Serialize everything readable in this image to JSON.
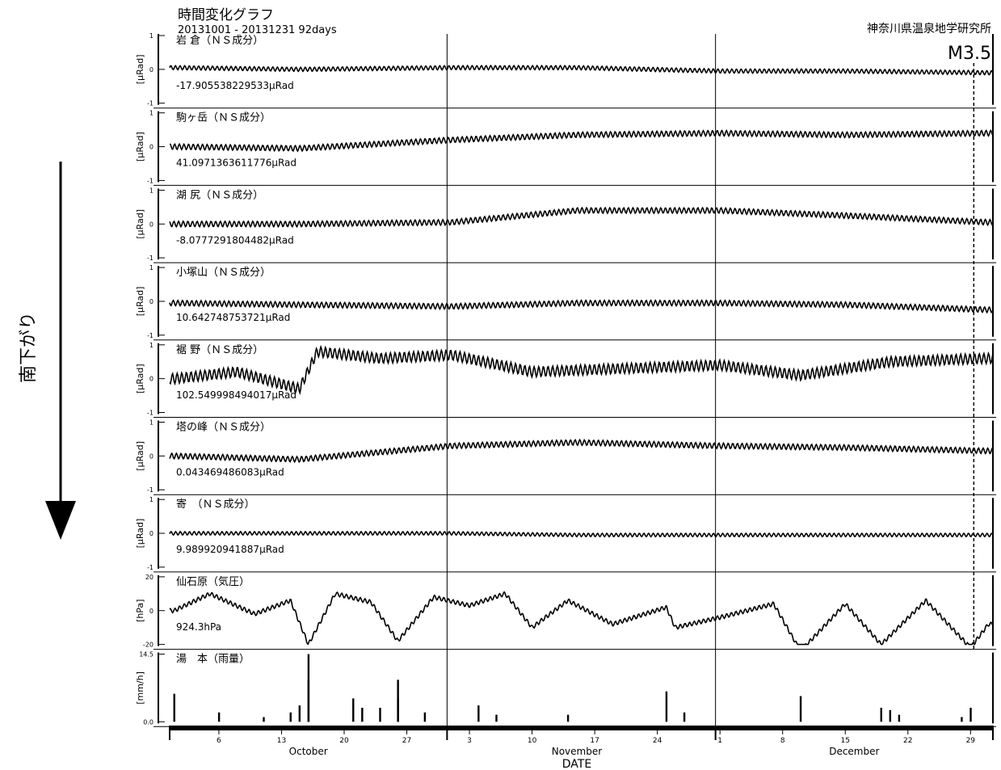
{
  "header": {
    "title": "時間変化グラフ",
    "period": "20131001 - 20131231 92days",
    "institute": "神奈川県温泉地学研究所",
    "event_label": "M3.5"
  },
  "side_label": "南下がり",
  "chart_data": {
    "type": "line",
    "x_axis": {
      "label": "DATE",
      "start": "2013-10-01",
      "end": "2013-12-31",
      "days": 92,
      "ticks": [
        {
          "label": "6",
          "date": "2013-10-06"
        },
        {
          "label": "13",
          "date": "2013-10-13"
        },
        {
          "label": "20",
          "date": "2013-10-20"
        },
        {
          "label": "27",
          "date": "2013-10-27"
        },
        {
          "label": "3",
          "date": "2013-11-03"
        },
        {
          "label": "10",
          "date": "2013-11-10"
        },
        {
          "label": "17",
          "date": "2013-11-17"
        },
        {
          "label": "24",
          "date": "2013-11-24"
        },
        {
          "label": "1",
          "date": "2013-12-01"
        },
        {
          "label": "8",
          "date": "2013-12-08"
        },
        {
          "label": "15",
          "date": "2013-12-15"
        },
        {
          "label": "22",
          "date": "2013-12-22"
        },
        {
          "label": "29",
          "date": "2013-12-29"
        }
      ],
      "months": [
        {
          "label": "October",
          "date": "2013-10-16"
        },
        {
          "label": "November",
          "date": "2013-11-15"
        },
        {
          "label": "December",
          "date": "2013-12-16"
        }
      ],
      "month_boundaries": [
        "2013-11-01",
        "2013-12-01"
      ],
      "event_marker_date": "2013-12-29"
    },
    "panels": [
      {
        "name": "岩 倉（ＮＳ成分）",
        "ylabel": "[μRad]",
        "yticks": [
          "1",
          "0",
          "-1"
        ],
        "ylim": [
          -1,
          1
        ],
        "offset_label": "-17.905538229533μRad",
        "x": [
          "2013-10-01",
          "2013-10-15",
          "2013-11-01",
          "2013-11-15",
          "2013-12-01",
          "2013-12-15",
          "2013-12-31"
        ],
        "y": [
          0.05,
          0.0,
          0.05,
          0.05,
          -0.05,
          -0.05,
          -0.1
        ],
        "tidal_amp": 0.06
      },
      {
        "name": "駒ヶ岳（ＮＳ成分）",
        "ylabel": "[μRad]",
        "yticks": [
          "1",
          "0",
          "-1"
        ],
        "ylim": [
          -1,
          1
        ],
        "offset_label": "41.0971363611776μRad",
        "x": [
          "2013-10-01",
          "2013-10-15",
          "2013-11-01",
          "2013-11-15",
          "2013-12-01",
          "2013-12-15",
          "2013-12-31"
        ],
        "y": [
          0.0,
          -0.05,
          0.2,
          0.35,
          0.4,
          0.35,
          0.4
        ],
        "tidal_amp": 0.08
      },
      {
        "name": "湖 尻（ＮＳ成分）",
        "ylabel": "[μRad]",
        "yticks": [
          "1",
          "0",
          "-1"
        ],
        "ylim": [
          -1,
          1
        ],
        "offset_label": "-8.0777291804482μRad",
        "x": [
          "2013-10-01",
          "2013-10-15",
          "2013-11-01",
          "2013-11-15",
          "2013-12-01",
          "2013-12-15",
          "2013-12-31"
        ],
        "y": [
          0.0,
          0.0,
          0.05,
          0.4,
          0.4,
          0.25,
          0.05
        ],
        "tidal_amp": 0.08
      },
      {
        "name": "小塚山（ＮＳ成分）",
        "ylabel": "[μRad]",
        "yticks": [
          "1",
          "0",
          "-1"
        ],
        "ylim": [
          -1,
          1
        ],
        "offset_label": "10.642748753721μRad",
        "x": [
          "2013-10-01",
          "2013-10-15",
          "2013-11-01",
          "2013-11-15",
          "2013-12-01",
          "2013-12-15",
          "2013-12-31"
        ],
        "y": [
          -0.05,
          -0.1,
          -0.15,
          -0.05,
          -0.05,
          -0.1,
          -0.25
        ],
        "tidal_amp": 0.08
      },
      {
        "name": "裾 野（ＮＳ成分）",
        "ylabel": "[μRad]",
        "yticks": [
          "1",
          "0",
          "-1"
        ],
        "ylim": [
          -1,
          1
        ],
        "offset_label": "102.549998494017μRad",
        "x": [
          "2013-10-01",
          "2013-10-08",
          "2013-10-15",
          "2013-10-17",
          "2013-10-24",
          "2013-11-01",
          "2013-11-10",
          "2013-11-20",
          "2013-12-01",
          "2013-12-10",
          "2013-12-20",
          "2013-12-31"
        ],
        "y": [
          0.0,
          0.2,
          -0.3,
          0.8,
          0.6,
          0.7,
          0.2,
          0.3,
          0.4,
          0.1,
          0.5,
          0.6
        ],
        "tidal_amp": 0.15
      },
      {
        "name": "塔の峰（ＮＳ成分）",
        "ylabel": "[μRad]",
        "yticks": [
          "1",
          "0",
          "-1"
        ],
        "ylim": [
          -1,
          1
        ],
        "offset_label": "0.043469486083μRad",
        "x": [
          "2013-10-01",
          "2013-10-15",
          "2013-11-01",
          "2013-11-15",
          "2013-12-01",
          "2013-12-15",
          "2013-12-31"
        ],
        "y": [
          0.0,
          -0.1,
          0.3,
          0.4,
          0.3,
          0.25,
          0.15
        ],
        "tidal_amp": 0.08
      },
      {
        "name": "寄　（ＮＳ成分）",
        "ylabel": "[μRad]",
        "yticks": [
          "1",
          "0",
          "-1"
        ],
        "ylim": [
          -1,
          1
        ],
        "offset_label": "9.989920941887μRad",
        "x": [
          "2013-10-01",
          "2013-10-15",
          "2013-11-01",
          "2013-11-15",
          "2013-12-01",
          "2013-12-15",
          "2013-12-31"
        ],
        "y": [
          0.0,
          0.0,
          0.0,
          -0.05,
          -0.05,
          -0.05,
          -0.05
        ],
        "tidal_amp": 0.05
      },
      {
        "name": "仙石原（気圧）",
        "ylabel": "[hPa]",
        "yticks": [
          "20",
          "0",
          "-20"
        ],
        "ylim": [
          -20,
          20
        ],
        "offset_label": "924.3hPa",
        "x": [
          "2013-10-01",
          "2013-10-05",
          "2013-10-10",
          "2013-10-14",
          "2013-10-16",
          "2013-10-19",
          "2013-10-23",
          "2013-10-26",
          "2013-10-30",
          "2013-11-03",
          "2013-11-07",
          "2013-11-10",
          "2013-11-14",
          "2013-11-19",
          "2013-11-25",
          "2013-11-26",
          "2013-12-01",
          "2013-12-07",
          "2013-12-10",
          "2013-12-15",
          "2013-12-19",
          "2013-12-24",
          "2013-12-29",
          "2013-12-31"
        ],
        "y": [
          0,
          10,
          -2,
          6,
          -20,
          10,
          5,
          -18,
          8,
          3,
          10,
          -10,
          6,
          -8,
          2,
          -10,
          -4,
          4,
          -24,
          4,
          -20,
          6,
          -22,
          -8
        ],
        "tidal_amp": 1.2
      }
    ],
    "rain_panel": {
      "name": "湯　本（雨量）",
      "ylabel": "[mm/h]",
      "yticks": [
        "14.5",
        "0.0"
      ],
      "ylim": [
        0,
        14.5
      ],
      "bars": [
        {
          "date": "2013-10-01",
          "value": 6.0
        },
        {
          "date": "2013-10-06",
          "value": 2.0
        },
        {
          "date": "2013-10-11",
          "value": 1.0
        },
        {
          "date": "2013-10-14",
          "value": 2.0
        },
        {
          "date": "2013-10-15",
          "value": 3.5
        },
        {
          "date": "2013-10-16",
          "value": 9.0
        },
        {
          "date": "2013-10-16",
          "value": 14.5
        },
        {
          "date": "2013-10-21",
          "value": 5.0
        },
        {
          "date": "2013-10-22",
          "value": 3.0
        },
        {
          "date": "2013-10-24",
          "value": 3.0
        },
        {
          "date": "2013-10-26",
          "value": 9.0
        },
        {
          "date": "2013-10-26",
          "value": 5.0
        },
        {
          "date": "2013-10-29",
          "value": 2.0
        },
        {
          "date": "2013-11-04",
          "value": 3.5
        },
        {
          "date": "2013-11-06",
          "value": 1.5
        },
        {
          "date": "2013-11-14",
          "value": 1.5
        },
        {
          "date": "2013-11-25",
          "value": 6.5
        },
        {
          "date": "2013-11-27",
          "value": 2.0
        },
        {
          "date": "2013-12-10",
          "value": 5.5
        },
        {
          "date": "2013-12-19",
          "value": 3.0
        },
        {
          "date": "2013-12-20",
          "value": 2.5
        },
        {
          "date": "2013-12-21",
          "value": 1.5
        },
        {
          "date": "2013-12-28",
          "value": 1.0
        },
        {
          "date": "2013-12-29",
          "value": 3.0
        }
      ]
    },
    "colors": {
      "line": "#000000",
      "grid": "#000000"
    }
  }
}
